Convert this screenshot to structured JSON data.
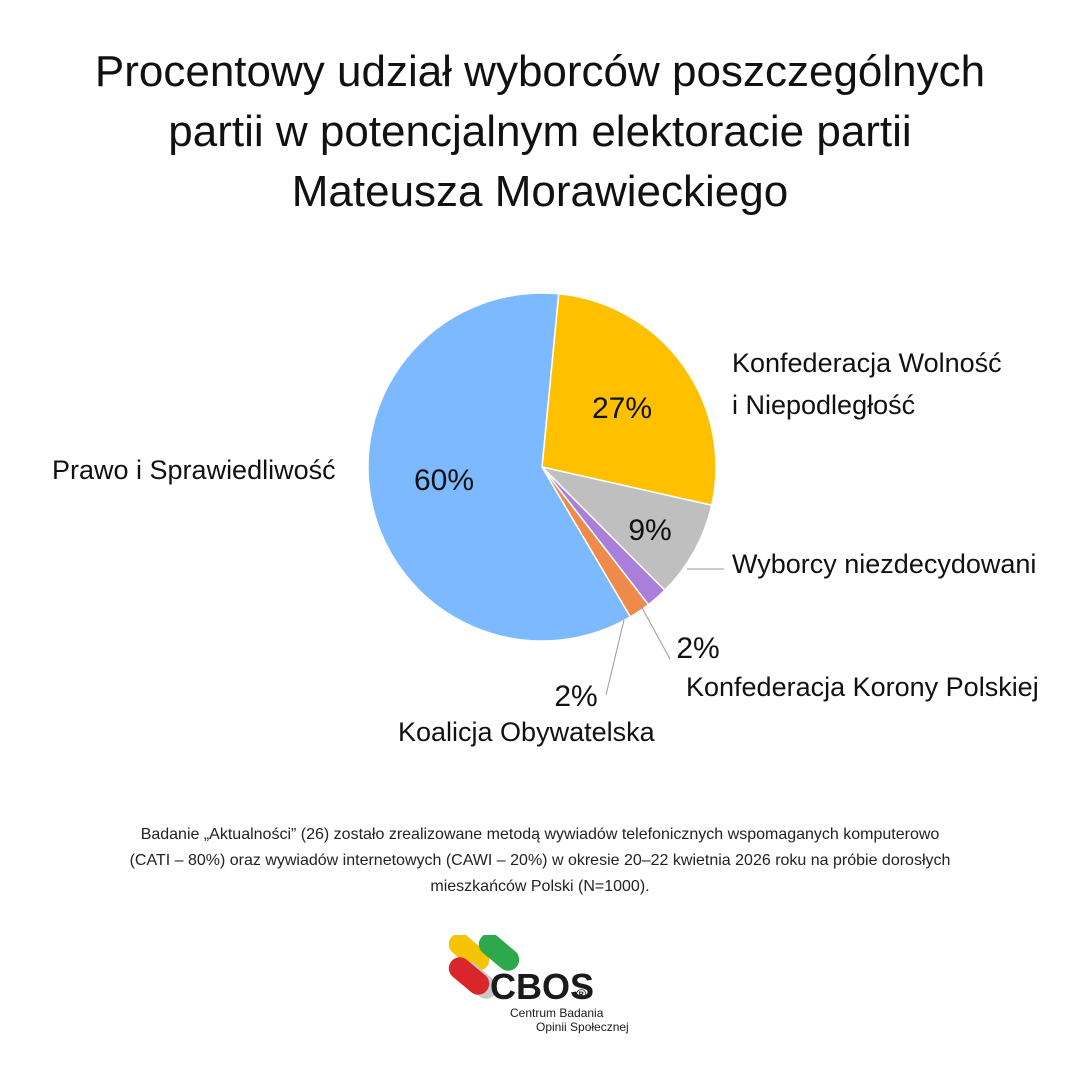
{
  "title_lines": [
    "Procentowy udział wyborców poszczególnych",
    "partii w potencjalnym elektoracie partii",
    "Mateusza Morawieckiego"
  ],
  "chart_data": {
    "type": "pie",
    "title": "Procentowy udział wyborców poszczególnych partii w potencjalnym elektoracie partii Mateusza Morawieckiego",
    "slices": [
      {
        "label": "Konfederacja Wolność i Niepodległość",
        "label_lines": [
          "Konfederacja Wolność",
          "i Niepodległość"
        ],
        "value": 27,
        "value_label": "27%",
        "color": "#FFC000"
      },
      {
        "label": "Wyborcy niezdecydowani",
        "label_lines": [
          "Wyborcy niezdecydowani"
        ],
        "value": 9,
        "value_label": "9%",
        "color": "#BFBFBF"
      },
      {
        "label": "Konfederacja Korony Polskiej",
        "label_lines": [
          "Konfederacja Korony Polskiej"
        ],
        "value": 2,
        "value_label": "2%",
        "color": "#A97FDB"
      },
      {
        "label": "Koalicja Obywatelska",
        "label_lines": [
          "Koalicja Obywatelska"
        ],
        "value": 2,
        "value_label": "2%",
        "color": "#F08A4B"
      },
      {
        "label": "Prawo i Sprawiedliwość",
        "label_lines": [
          "Prawo i Sprawiedliwość"
        ],
        "value": 60,
        "value_label": "60%",
        "color": "#7DB9FF"
      }
    ]
  },
  "footnote_lines": [
    "Badanie „Aktualności” (26) zostało zrealizowane metodą wywiadów telefonicznych wspomaganych komputerowo",
    "(CATI – 80%) oraz wywiadów internetowych (CAWI – 20%) w okresie 20–22 kwietnia 2026 roku na próbie dorosłych",
    "mieszkańców Polski (N=1000)."
  ],
  "logo": {
    "name": "CBOS",
    "registered": "®",
    "subtitle_lines": [
      "Centrum Badania",
      "Opinii Społecznej"
    ],
    "colors": {
      "yellow": "#F5C400",
      "green": "#2DA84A",
      "red": "#D9262B",
      "gray": "#C8C8C8"
    }
  }
}
